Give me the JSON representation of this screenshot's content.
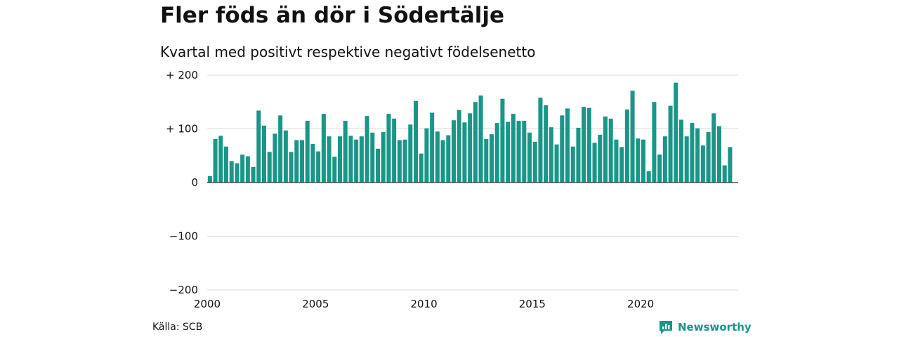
{
  "header": {
    "title": "Fler föds än dör i Södertälje",
    "subtitle": "Kvartal med positivt respektive negativt födelsenetto"
  },
  "footer": {
    "source": "Källa: SCB",
    "brand": "Newsworthy",
    "brand_icon": "newsworthy-logo-icon"
  },
  "colors": {
    "bar": "#1a9688",
    "grid": "#dddddd",
    "zero_line": "#333333",
    "brand": "#1a9688"
  },
  "chart_data": {
    "type": "bar",
    "title": "Fler föds än dör i Södertälje",
    "subtitle": "Kvartal med positivt respektive negativt födelsenetto",
    "ylim": [
      -200,
      200
    ],
    "xlim": [
      2000.0,
      2024.5
    ],
    "yticks": [
      {
        "value": 200,
        "label": "+ 200"
      },
      {
        "value": 100,
        "label": "+ 100"
      },
      {
        "value": 0,
        "label": "0"
      },
      {
        "value": -100,
        "label": "−100"
      },
      {
        "value": -200,
        "label": "−200"
      }
    ],
    "xticks": [
      {
        "value": 2000,
        "label": "2000"
      },
      {
        "value": 2005,
        "label": "2005"
      },
      {
        "value": 2010,
        "label": "2010"
      },
      {
        "value": 2015,
        "label": "2015"
      },
      {
        "value": 2020,
        "label": "2020"
      }
    ],
    "grid": true,
    "series": [
      {
        "start_year": 2000,
        "quarters_per_year": 4,
        "values": [
          12,
          81,
          87,
          67,
          40,
          36,
          52,
          49,
          29,
          134,
          106,
          57,
          91,
          125,
          97,
          57,
          79,
          79,
          115,
          72,
          58,
          128,
          86,
          48,
          86,
          115,
          87,
          80,
          86,
          124,
          93,
          63,
          94,
          128,
          119,
          79,
          80,
          108,
          152,
          54,
          101,
          130,
          95,
          79,
          88,
          116,
          135,
          112,
          129,
          150,
          162,
          81,
          90,
          111,
          156,
          113,
          128,
          115,
          115,
          93,
          76,
          158,
          144,
          103,
          71,
          125,
          138,
          67,
          102,
          141,
          139,
          74,
          89,
          123,
          119,
          80,
          66,
          136,
          171,
          82,
          80,
          21,
          150,
          52,
          86,
          143,
          186,
          117,
          86,
          111,
          101,
          69,
          94,
          129,
          105,
          32,
          66
        ]
      }
    ]
  }
}
